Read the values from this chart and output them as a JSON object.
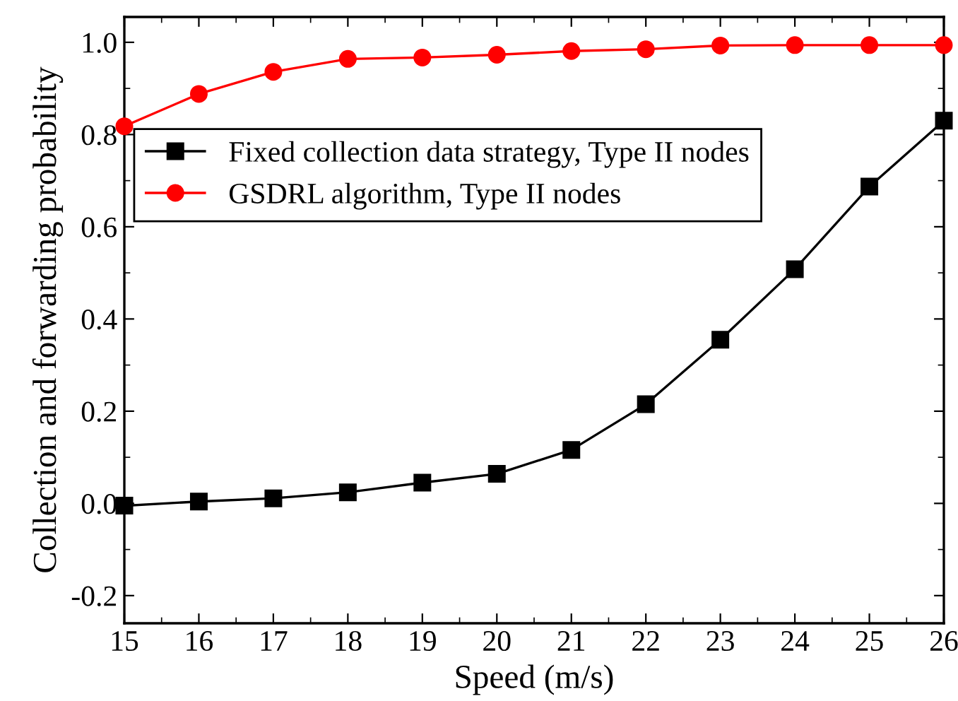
{
  "chart_data": {
    "type": "line",
    "xlabel": "Speed (m/s)",
    "ylabel": "Collection and forwarding probability",
    "x": [
      15,
      16,
      17,
      18,
      19,
      20,
      21,
      22,
      23,
      24,
      25,
      26
    ],
    "series": [
      {
        "name": "Fixed collection data strategy, Type II nodes",
        "color": "#000000",
        "marker": "square",
        "values": [
          -0.005,
          0.004,
          0.011,
          0.024,
          0.045,
          0.064,
          0.116,
          0.215,
          0.355,
          0.508,
          0.687,
          0.83
        ]
      },
      {
        "name": "GSDRL algorithm, Type II nodes",
        "color": "#ff0000",
        "marker": "circle",
        "values": [
          0.818,
          0.888,
          0.936,
          0.964,
          0.967,
          0.973,
          0.981,
          0.985,
          0.993,
          0.994,
          0.994,
          0.994
        ]
      }
    ],
    "xlim": [
      15,
      26
    ],
    "xticks": [
      15,
      16,
      17,
      18,
      19,
      20,
      21,
      22,
      23,
      24,
      25,
      26
    ],
    "ylim": [
      -0.26,
      1.055
    ],
    "yticks": [
      {
        "value": -0.2,
        "label": "-0.2"
      },
      {
        "value": 0,
        "label": "0.0"
      },
      {
        "value": 0.2,
        "label": "0.2"
      },
      {
        "value": 0.4,
        "label": "0.4"
      },
      {
        "value": 0.6,
        "label": "0.6"
      },
      {
        "value": 0.8,
        "label": "0.8"
      },
      {
        "value": 1.0,
        "label": "1.0"
      }
    ],
    "grid": false,
    "legend": "top left",
    "line_style": "solid"
  }
}
